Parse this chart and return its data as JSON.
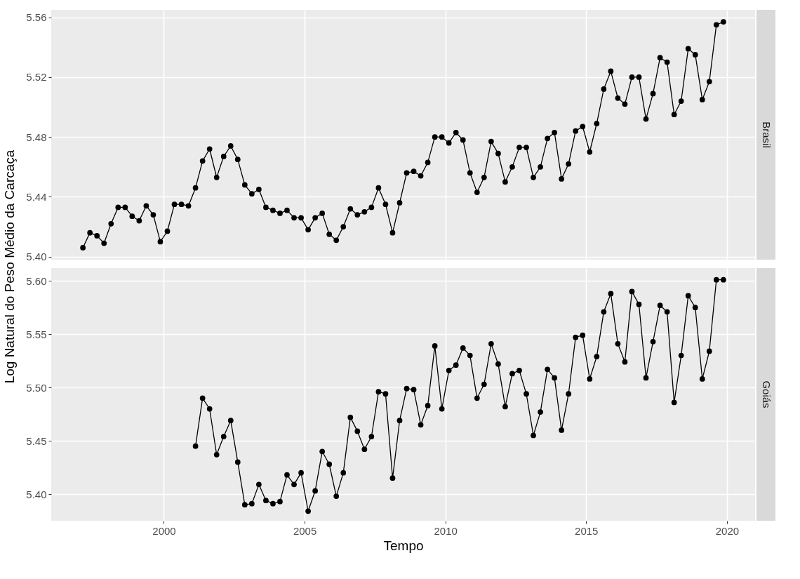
{
  "chart_data": [
    {
      "type": "line",
      "ylabel": "Log Natural do Peso Médio da Carcaça",
      "marker": "circle",
      "line_style": "solid",
      "grid": true,
      "legend": false,
      "tick_labels": "y",
      "xlim": [
        1996,
        2021
      ],
      "xticks": [
        2000,
        2005,
        2010,
        2015,
        2020
      ],
      "ylim": [
        5.398,
        5.565
      ],
      "yticks": [
        {
          "value": 5.4,
          "label": "5.40"
        },
        5.44,
        5.48,
        5.52,
        5.56
      ],
      "series": [
        {
          "name": "Brasil",
          "color": "#000000",
          "x": [
            1997.125,
            1997.375,
            1997.625,
            1997.875,
            1998.125,
            1998.375,
            1998.625,
            1998.875,
            1999.125,
            1999.375,
            1999.625,
            1999.875,
            2000.125,
            2000.375,
            2000.625,
            2000.875,
            2001.125,
            2001.375,
            2001.625,
            2001.875,
            2002.125,
            2002.375,
            2002.625,
            2002.875,
            2003.125,
            2003.375,
            2003.625,
            2003.875,
            2004.125,
            2004.375,
            2004.625,
            2004.875,
            2005.125,
            2005.375,
            2005.625,
            2005.875,
            2006.125,
            2006.375,
            2006.625,
            2006.875,
            2007.125,
            2007.375,
            2007.625,
            2007.875,
            2008.125,
            2008.375,
            2008.625,
            2008.875,
            2009.125,
            2009.375,
            2009.625,
            2009.875,
            2010.125,
            2010.375,
            2010.625,
            2010.875,
            2011.125,
            2011.375,
            2011.625,
            2011.875,
            2012.125,
            2012.375,
            2012.625,
            2012.875,
            2013.125,
            2013.375,
            2013.625,
            2013.875,
            2014.125,
            2014.375,
            2014.625,
            2014.875,
            2015.125,
            2015.375,
            2015.625,
            2015.875,
            2016.125,
            2016.375,
            2016.625,
            2016.875,
            2017.125,
            2017.375,
            2017.625,
            2017.875,
            2018.125,
            2018.375,
            2018.625,
            2018.875,
            2019.125,
            2019.375,
            2019.625,
            2019.875
          ],
          "values": [
            5.406,
            5.416,
            5.414,
            5.409,
            5.422,
            5.433,
            5.433,
            5.427,
            5.424,
            5.434,
            5.428,
            5.41,
            5.417,
            5.435,
            5.435,
            5.434,
            5.446,
            5.464,
            5.472,
            5.453,
            5.467,
            5.474,
            5.465,
            5.448,
            5.442,
            5.445,
            5.433,
            5.431,
            5.429,
            5.431,
            5.426,
            5.426,
            5.418,
            5.426,
            5.429,
            5.415,
            5.411,
            5.42,
            5.432,
            5.428,
            5.43,
            5.433,
            5.446,
            5.435,
            5.416,
            5.436,
            5.456,
            5.457,
            5.454,
            5.463,
            5.48,
            5.48,
            5.476,
            5.483,
            5.478,
            5.456,
            5.443,
            5.453,
            5.477,
            5.469,
            5.45,
            5.46,
            5.473,
            5.473,
            5.453,
            5.46,
            5.479,
            5.483,
            5.452,
            5.462,
            5.484,
            5.487,
            5.47,
            5.489,
            5.512,
            5.524,
            5.506,
            5.502,
            5.52,
            5.52,
            5.492,
            5.509,
            5.533,
            5.53,
            5.495,
            5.504,
            5.539,
            5.535,
            5.505,
            5.517,
            5.555,
            5.557
          ]
        }
      ]
    },
    {
      "type": "line",
      "xlabel": "Tempo",
      "marker": "circle",
      "line_style": "solid",
      "grid": true,
      "legend": false,
      "xlim": [
        1996,
        2021
      ],
      "xticks": [
        2000,
        2005,
        2010,
        2015,
        2020
      ],
      "ylim": [
        5.375,
        5.612
      ],
      "yticks": [
        {
          "value": 5.4,
          "label": "5.40"
        },
        5.45,
        {
          "value": 5.5,
          "label": "5.50"
        },
        5.55,
        {
          "value": 5.6,
          "label": "5.60"
        }
      ],
      "series": [
        {
          "name": "Goiás",
          "color": "#000000",
          "x": [
            2001.125,
            2001.375,
            2001.625,
            2001.875,
            2002.125,
            2002.375,
            2002.625,
            2002.875,
            2003.125,
            2003.375,
            2003.625,
            2003.875,
            2004.125,
            2004.375,
            2004.625,
            2004.875,
            2005.125,
            2005.375,
            2005.625,
            2005.875,
            2006.125,
            2006.375,
            2006.625,
            2006.875,
            2007.125,
            2007.375,
            2007.625,
            2007.875,
            2008.125,
            2008.375,
            2008.625,
            2008.875,
            2009.125,
            2009.375,
            2009.625,
            2009.875,
            2010.125,
            2010.375,
            2010.625,
            2010.875,
            2011.125,
            2011.375,
            2011.625,
            2011.875,
            2012.125,
            2012.375,
            2012.625,
            2012.875,
            2013.125,
            2013.375,
            2013.625,
            2013.875,
            2014.125,
            2014.375,
            2014.625,
            2014.875,
            2015.125,
            2015.375,
            2015.625,
            2015.875,
            2016.125,
            2016.375,
            2016.625,
            2016.875,
            2017.125,
            2017.375,
            2017.625,
            2017.875,
            2018.125,
            2018.375,
            2018.625,
            2018.875,
            2019.125,
            2019.375,
            2019.625,
            2019.875
          ],
          "values": [
            5.445,
            5.49,
            5.48,
            5.437,
            5.454,
            5.469,
            5.43,
            5.39,
            5.391,
            5.409,
            5.394,
            5.391,
            5.393,
            5.418,
            5.409,
            5.42,
            5.384,
            5.403,
            5.44,
            5.428,
            5.398,
            5.42,
            5.472,
            5.459,
            5.442,
            5.454,
            5.496,
            5.494,
            5.415,
            5.469,
            5.499,
            5.498,
            5.465,
            5.483,
            5.539,
            5.48,
            5.516,
            5.521,
            5.537,
            5.53,
            5.49,
            5.503,
            5.541,
            5.522,
            5.482,
            5.513,
            5.516,
            5.494,
            5.455,
            5.477,
            5.517,
            5.509,
            5.46,
            5.494,
            5.547,
            5.549,
            5.508,
            5.529,
            5.571,
            5.588,
            5.541,
            5.524,
            5.59,
            5.578,
            5.509,
            5.543,
            5.577,
            5.571,
            5.486,
            5.53,
            5.586,
            5.575,
            5.508,
            5.534,
            5.601,
            5.601
          ]
        }
      ]
    }
  ]
}
